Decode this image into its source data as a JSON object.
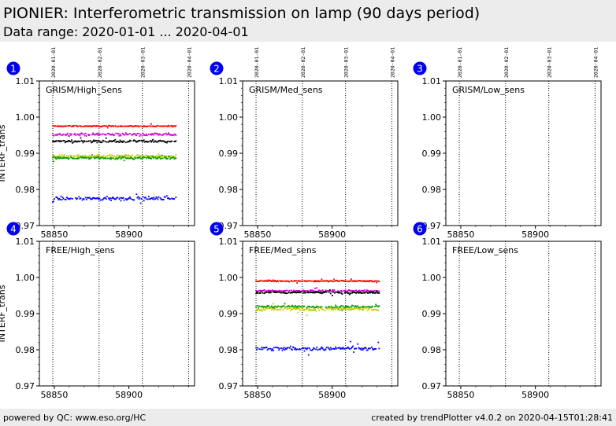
{
  "header": {
    "title": "PIONIER: Interferometric transmission on lamp (90 days period)",
    "subtitle": "Data range: 2020-01-01 ... 2020-04-01"
  },
  "footer": {
    "left": "powered by QC: www.eso.org/HC",
    "right": "created by trendPlotter v4.0.2 on 2020-04-15T01:28:41"
  },
  "colors": {
    "red": "#ff0000",
    "magenta": "#cc00cc",
    "black": "#000000",
    "yellow": "#cccc00",
    "green": "#009900",
    "blue": "#0000ff",
    "badge": "#0000ee"
  },
  "chart_data": [
    {
      "type": "scatter",
      "panel": "1",
      "label": "GRISM/High_Sens",
      "ylabel": "INTERF_trans",
      "xlim": [
        58840,
        58944
      ],
      "ylim": [
        0.97,
        1.01
      ],
      "xticks": [
        58850,
        58900
      ],
      "yticks": [
        0.97,
        0.98,
        0.99,
        1.0,
        1.01
      ],
      "ytick_labels": [
        "0.97",
        "0.98",
        "0.99",
        "1.00",
        "1.01"
      ],
      "date_markers": [
        {
          "x": 58849,
          "label": "2020-01-01"
        },
        {
          "x": 58880,
          "label": "2020-02-01"
        },
        {
          "x": 58909,
          "label": "2020-03-01"
        },
        {
          "x": 58940,
          "label": "2020-04-01"
        }
      ],
      "series": [
        {
          "color": "red",
          "x_range": [
            58849,
            58932
          ],
          "value": 0.9975,
          "spread": 0.00015
        },
        {
          "color": "magenta",
          "x_range": [
            58849,
            58932
          ],
          "value": 0.9952,
          "spread": 0.0003
        },
        {
          "color": "black",
          "x_range": [
            58849,
            58932
          ],
          "value": 0.9933,
          "spread": 0.0003
        },
        {
          "color": "yellow",
          "x_range": [
            58849,
            58932
          ],
          "value": 0.9892,
          "spread": 0.0003
        },
        {
          "color": "green",
          "x_range": [
            58849,
            58932
          ],
          "value": 0.9887,
          "spread": 0.0003
        },
        {
          "color": "blue",
          "x_range": [
            58849,
            58932
          ],
          "value": 0.9775,
          "spread": 0.0004
        }
      ]
    },
    {
      "type": "scatter",
      "panel": "2",
      "label": "GRISM/Med_sens",
      "ylabel": "",
      "xlim": [
        58840,
        58944
      ],
      "ylim": [
        0.97,
        1.01
      ],
      "xticks": [
        58850,
        58900
      ],
      "yticks": [
        0.97,
        0.98,
        0.99,
        1.0,
        1.01
      ],
      "ytick_labels": [
        "0.97",
        "0.98",
        "0.99",
        "1.00",
        "1.01"
      ],
      "date_markers": [
        {
          "x": 58849,
          "label": "2020-01-01"
        },
        {
          "x": 58880,
          "label": "2020-02-01"
        },
        {
          "x": 58909,
          "label": "2020-03-01"
        },
        {
          "x": 58940,
          "label": "2020-04-01"
        }
      ],
      "series": []
    },
    {
      "type": "scatter",
      "panel": "3",
      "label": "GRISM/Low_sens",
      "ylabel": "",
      "xlim": [
        58840,
        58944
      ],
      "ylim": [
        0.97,
        1.01
      ],
      "xticks": [
        58850,
        58900
      ],
      "yticks": [
        0.97,
        0.98,
        0.99,
        1.0,
        1.01
      ],
      "ytick_labels": [
        "0.97",
        "0.98",
        "0.99",
        "1.00",
        "1.01"
      ],
      "date_markers": [
        {
          "x": 58849,
          "label": "2020-01-01"
        },
        {
          "x": 58880,
          "label": "2020-02-01"
        },
        {
          "x": 58909,
          "label": "2020-03-01"
        },
        {
          "x": 58940,
          "label": "2020-04-01"
        }
      ],
      "series": []
    },
    {
      "type": "scatter",
      "panel": "4",
      "label": "FREE/High_sens",
      "ylabel": "INTERF_trans",
      "xlim": [
        58840,
        58944
      ],
      "ylim": [
        0.97,
        1.01
      ],
      "xticks": [
        58850,
        58900
      ],
      "yticks": [
        0.97,
        0.98,
        0.99,
        1.0,
        1.01
      ],
      "ytick_labels": [
        "0.97",
        "0.98",
        "0.99",
        "1.00",
        "1.01"
      ],
      "date_markers": [
        {
          "x": 58849,
          "label": ""
        },
        {
          "x": 58880,
          "label": ""
        },
        {
          "x": 58909,
          "label": ""
        },
        {
          "x": 58940,
          "label": ""
        }
      ],
      "series": []
    },
    {
      "type": "scatter",
      "panel": "5",
      "label": "FREE/Med_sens",
      "ylabel": "",
      "xlim": [
        58840,
        58944
      ],
      "ylim": [
        0.97,
        1.01
      ],
      "xticks": [
        58850,
        58900
      ],
      "yticks": [
        0.97,
        0.98,
        0.99,
        1.0,
        1.01
      ],
      "ytick_labels": [
        "0.97",
        "0.98",
        "0.99",
        "1.00",
        "1.01"
      ],
      "date_markers": [
        {
          "x": 58849,
          "label": ""
        },
        {
          "x": 58880,
          "label": ""
        },
        {
          "x": 58909,
          "label": ""
        },
        {
          "x": 58940,
          "label": ""
        }
      ],
      "series": [
        {
          "color": "red",
          "x_range": [
            58849,
            58932
          ],
          "value": 0.999,
          "spread": 0.00015
        },
        {
          "color": "magenta",
          "x_range": [
            58849,
            58932
          ],
          "value": 0.9963,
          "spread": 0.0002
        },
        {
          "color": "black",
          "x_range": [
            58849,
            58932
          ],
          "value": 0.9958,
          "spread": 0.0002
        },
        {
          "color": "green",
          "x_range": [
            58849,
            58932
          ],
          "value": 0.9919,
          "spread": 0.0003
        },
        {
          "color": "yellow",
          "x_range": [
            58849,
            58932
          ],
          "value": 0.9912,
          "spread": 0.0004
        },
        {
          "color": "blue",
          "x_range": [
            58849,
            58932
          ],
          "value": 0.9803,
          "spread": 0.0005
        }
      ]
    },
    {
      "type": "scatter",
      "panel": "6",
      "label": "FREE/Low_sens",
      "ylabel": "",
      "xlim": [
        58840,
        58944
      ],
      "ylim": [
        0.97,
        1.01
      ],
      "xticks": [
        58850,
        58900
      ],
      "yticks": [
        0.97,
        0.98,
        0.99,
        1.0,
        1.01
      ],
      "ytick_labels": [
        "0.97",
        "0.98",
        "0.99",
        "1.00",
        "1.01"
      ],
      "date_markers": [
        {
          "x": 58849,
          "label": ""
        },
        {
          "x": 58880,
          "label": ""
        },
        {
          "x": 58909,
          "label": ""
        },
        {
          "x": 58940,
          "label": ""
        }
      ],
      "series": []
    }
  ]
}
